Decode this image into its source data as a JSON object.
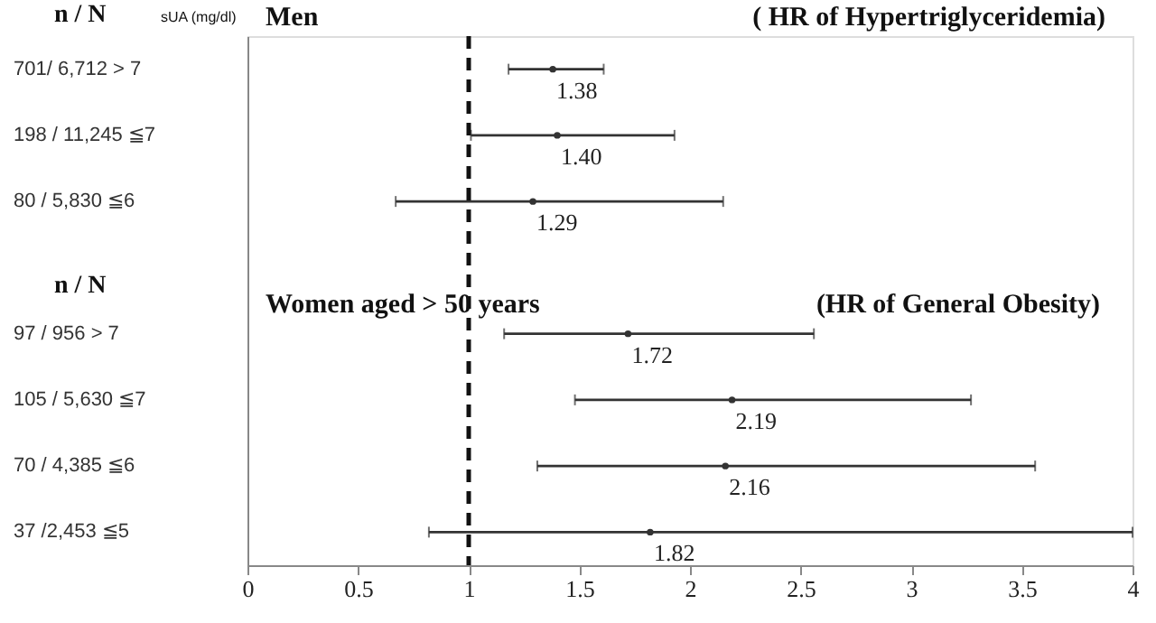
{
  "chart_data": {
    "type": "scatter",
    "orientation": "horizontal",
    "categories": [
      "701/ 6,712     > 7",
      "198 / 11,245   ≦7",
      "80 / 5,830      ≦6",
      null,
      "97 / 956         > 7",
      "105 / 5,630    ≦7",
      "70 / 4,385      ≦6",
      "37 /2,453       ≦5"
    ],
    "values": [
      1.38,
      1.4,
      1.29,
      null,
      1.72,
      2.19,
      2.16,
      1.82
    ],
    "errors": [
      [
        1.18,
        1.61
      ],
      [
        1.01,
        1.93
      ],
      [
        0.67,
        2.15
      ],
      null,
      [
        1.16,
        2.56
      ],
      [
        1.48,
        3.27
      ],
      [
        1.31,
        3.56
      ],
      [
        0.82,
        4.0
      ]
    ],
    "color": "#333333",
    "marker": "circle",
    "value_labels": [
      "1.38",
      "1.40",
      "1.29",
      null,
      "1.72",
      "2.19",
      "2.16",
      "1.82"
    ],
    "xlim": [
      0,
      4
    ],
    "xticks": [
      0,
      0.5,
      1,
      1.5,
      2,
      2.5,
      3,
      3.5,
      4
    ],
    "ref_lines": [
      {
        "axis": "x",
        "value": 1,
        "label": null,
        "color": "#111111",
        "line_style": "dashed"
      }
    ],
    "grid": false,
    "annotations": [
      "n  /  N",
      "sUA (mg/dl)",
      "Men",
      "( HR of Hypertriglyceridemia)",
      "n  /  N",
      "Women aged > 50 years",
      "(HR of  General Obesity)"
    ]
  }
}
